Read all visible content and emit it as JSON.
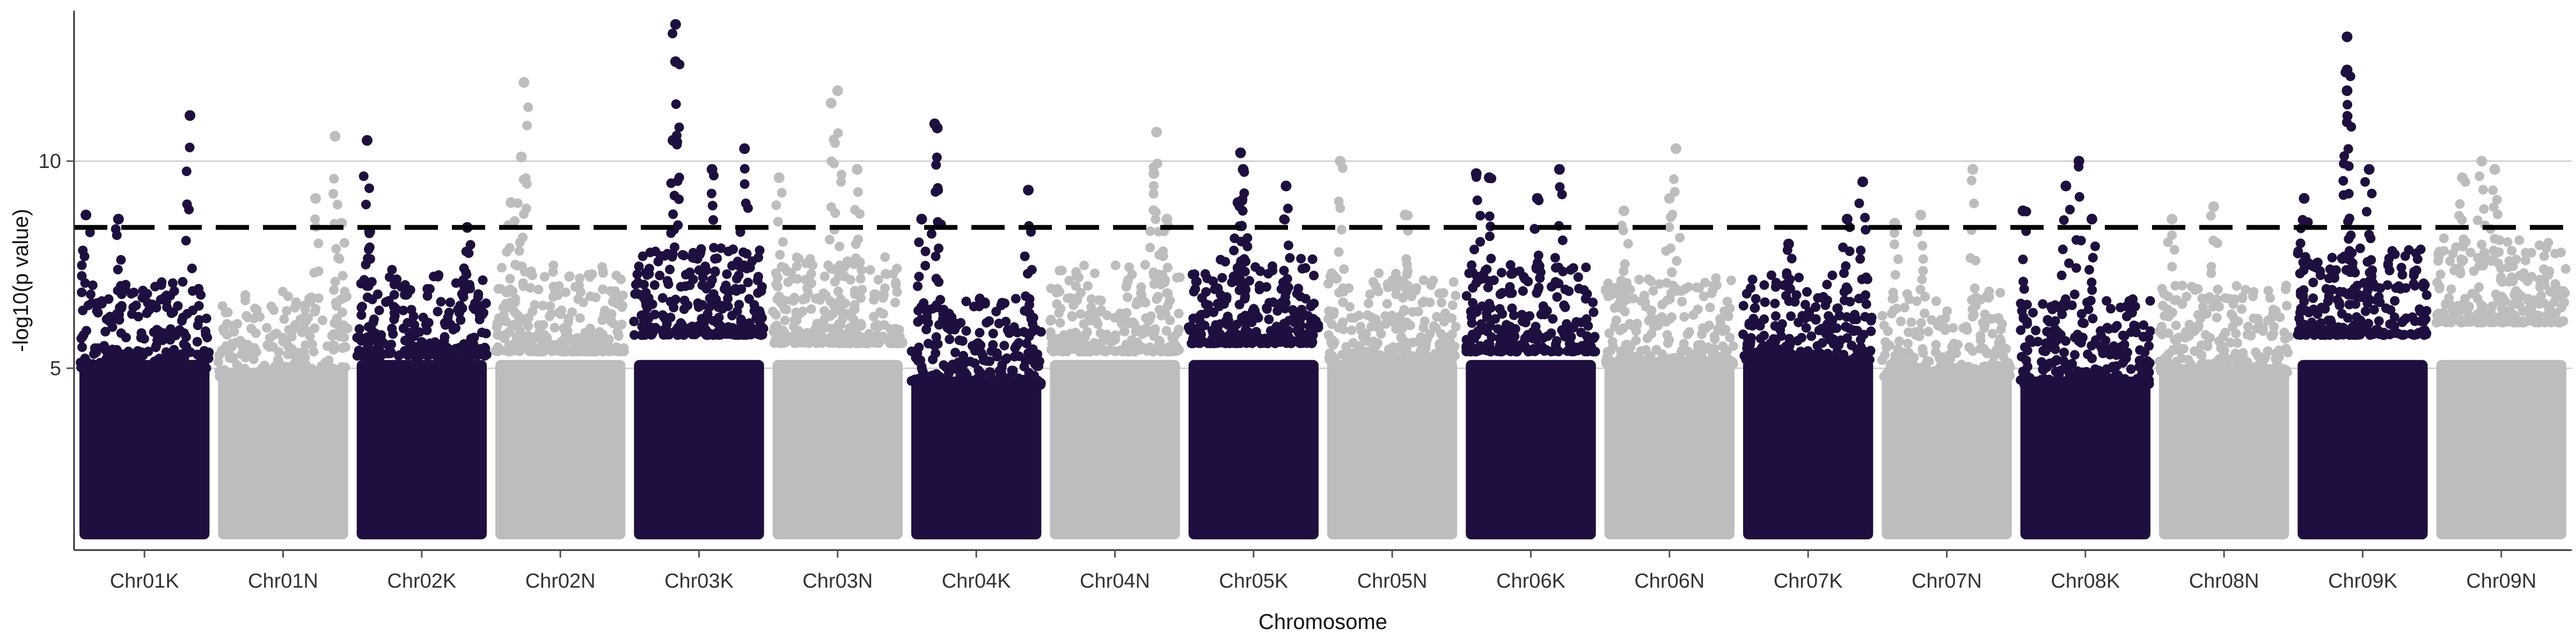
{
  "chart_data": {
    "type": "scatter",
    "title": "",
    "xlabel": "Chromosome",
    "ylabel": "-log10(p value)",
    "ylim": [
      1.0,
      13.5
    ],
    "yticks": [
      5,
      10
    ],
    "grid": "horizontal",
    "legend": "none",
    "threshold": 8.4,
    "colors": {
      "dark": "#1e0f40",
      "light": "#bdbdbd",
      "grid": "#cccccc",
      "threshold": "#000000"
    },
    "chromosomes": [
      {
        "name": "Chr01K",
        "color": "dark",
        "base": 6.2,
        "peaks": [
          {
            "pos": 0.85,
            "y": 11.1
          },
          {
            "pos": 0.05,
            "y": 8.7
          },
          {
            "pos": 0.3,
            "y": 8.6
          }
        ]
      },
      {
        "name": "Chr01N",
        "color": "light",
        "base": 6.0,
        "peaks": [
          {
            "pos": 0.9,
            "y": 10.6
          },
          {
            "pos": 0.75,
            "y": 9.1
          },
          {
            "pos": 0.95,
            "y": 8.5
          }
        ]
      },
      {
        "name": "Chr02K",
        "color": "dark",
        "base": 6.5,
        "peaks": [
          {
            "pos": 0.08,
            "y": 10.5
          },
          {
            "pos": 0.85,
            "y": 8.4
          },
          {
            "pos": 0.1,
            "y": 8.3
          }
        ]
      },
      {
        "name": "Chr02N",
        "color": "light",
        "base": 6.6,
        "peaks": [
          {
            "pos": 0.22,
            "y": 11.9
          },
          {
            "pos": 0.2,
            "y": 10.1
          },
          {
            "pos": 0.12,
            "y": 9.0
          }
        ]
      },
      {
        "name": "Chr03K",
        "color": "dark",
        "base": 7.0,
        "peaks": [
          {
            "pos": 0.32,
            "y": 13.3
          },
          {
            "pos": 0.32,
            "y": 12.4
          },
          {
            "pos": 0.3,
            "y": 10.5
          },
          {
            "pos": 0.85,
            "y": 10.3
          },
          {
            "pos": 0.6,
            "y": 9.8
          }
        ]
      },
      {
        "name": "Chr03N",
        "color": "light",
        "base": 6.8,
        "peaks": [
          {
            "pos": 0.5,
            "y": 11.7
          },
          {
            "pos": 0.45,
            "y": 11.4
          },
          {
            "pos": 0.65,
            "y": 9.8
          },
          {
            "pos": 0.05,
            "y": 9.6
          }
        ]
      },
      {
        "name": "Chr04K",
        "color": "dark",
        "base": 5.8,
        "peaks": [
          {
            "pos": 0.18,
            "y": 10.9
          },
          {
            "pos": 0.2,
            "y": 10.8
          },
          {
            "pos": 0.9,
            "y": 9.3
          },
          {
            "pos": 0.08,
            "y": 8.6
          }
        ]
      },
      {
        "name": "Chr04N",
        "color": "light",
        "base": 6.6,
        "peaks": [
          {
            "pos": 0.82,
            "y": 10.7
          },
          {
            "pos": 0.8,
            "y": 9.7
          },
          {
            "pos": 0.9,
            "y": 8.6
          }
        ]
      },
      {
        "name": "Chr05K",
        "color": "dark",
        "base": 6.8,
        "peaks": [
          {
            "pos": 0.4,
            "y": 10.2
          },
          {
            "pos": 0.42,
            "y": 9.8
          },
          {
            "pos": 0.75,
            "y": 9.4
          },
          {
            "pos": 0.38,
            "y": 9.0
          }
        ]
      },
      {
        "name": "Chr05N",
        "color": "light",
        "base": 6.4,
        "peaks": [
          {
            "pos": 0.1,
            "y": 10.0
          },
          {
            "pos": 0.6,
            "y": 8.7
          }
        ]
      },
      {
        "name": "Chr06K",
        "color": "dark",
        "base": 6.6,
        "peaks": [
          {
            "pos": 0.08,
            "y": 9.7
          },
          {
            "pos": 0.18,
            "y": 9.6
          },
          {
            "pos": 0.72,
            "y": 9.8
          },
          {
            "pos": 0.55,
            "y": 9.1
          }
        ]
      },
      {
        "name": "Chr06N",
        "color": "light",
        "base": 6.3,
        "peaks": [
          {
            "pos": 0.55,
            "y": 10.3
          },
          {
            "pos": 0.5,
            "y": 9.1
          },
          {
            "pos": 0.15,
            "y": 8.8
          }
        ]
      },
      {
        "name": "Chr07K",
        "color": "dark",
        "base": 6.4,
        "peaks": [
          {
            "pos": 0.92,
            "y": 9.5
          },
          {
            "pos": 0.8,
            "y": 8.6
          },
          {
            "pos": 0.35,
            "y": 8.0
          }
        ]
      },
      {
        "name": "Chr07N",
        "color": "light",
        "base": 6.0,
        "peaks": [
          {
            "pos": 0.7,
            "y": 9.8
          },
          {
            "pos": 0.3,
            "y": 8.7
          },
          {
            "pos": 0.1,
            "y": 8.5
          }
        ]
      },
      {
        "name": "Chr08K",
        "color": "dark",
        "base": 5.8,
        "peaks": [
          {
            "pos": 0.45,
            "y": 10.0
          },
          {
            "pos": 0.35,
            "y": 9.4
          },
          {
            "pos": 0.02,
            "y": 8.8
          },
          {
            "pos": 0.55,
            "y": 8.6
          }
        ]
      },
      {
        "name": "Chr08N",
        "color": "light",
        "base": 6.1,
        "peaks": [
          {
            "pos": 0.42,
            "y": 8.9
          },
          {
            "pos": 0.1,
            "y": 8.6
          }
        ]
      },
      {
        "name": "Chr09K",
        "color": "dark",
        "base": 7.0,
        "peaks": [
          {
            "pos": 0.38,
            "y": 13.0
          },
          {
            "pos": 0.38,
            "y": 12.2
          },
          {
            "pos": 0.38,
            "y": 11.7
          },
          {
            "pos": 0.55,
            "y": 9.8
          },
          {
            "pos": 0.05,
            "y": 9.1
          }
        ]
      },
      {
        "name": "Chr09N",
        "color": "light",
        "base": 7.3,
        "peaks": [
          {
            "pos": 0.35,
            "y": 10.0
          },
          {
            "pos": 0.45,
            "y": 9.8
          },
          {
            "pos": 0.2,
            "y": 9.6
          }
        ]
      }
    ]
  }
}
